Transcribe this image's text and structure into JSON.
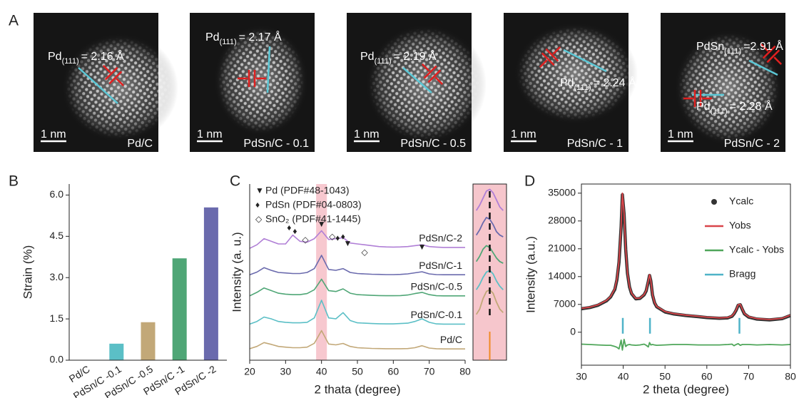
{
  "panel_a": {
    "label": "A",
    "images": [
      {
        "caption": "Pd/C",
        "scale_bar": "1 nm",
        "annotations": [
          {
            "text": "Pd",
            "sub": "(111)",
            "value": "= 2.16 Å"
          }
        ]
      },
      {
        "caption": "PdSn/C - 0.1",
        "scale_bar": "1 nm",
        "annotations": [
          {
            "text": "Pd",
            "sub": "(111)",
            "value": "= 2.17 Å"
          }
        ]
      },
      {
        "caption": "PdSn/C - 0.5",
        "scale_bar": "1 nm",
        "annotations": [
          {
            "text": "Pd",
            "sub": "(111)",
            "value": "= 2.19 Å"
          }
        ]
      },
      {
        "caption": "PdSn/C - 1",
        "scale_bar": "1 nm",
        "annotations": [
          {
            "text": "Pd",
            "sub": "(111)",
            "value": "= 2.24 Å"
          }
        ]
      },
      {
        "caption": "PdSn/C - 2",
        "scale_bar": "1 nm",
        "annotations": [
          {
            "text": "PdSn",
            "sub": "(111)",
            "value": "=2.91 Å"
          },
          {
            "text": "Pd",
            "sub": "(111)",
            "value": "= 2.28 Å"
          }
        ]
      }
    ]
  },
  "chart_data": [
    {
      "type": "bar",
      "panel_label": "B",
      "ylabel": "Strain (%)",
      "categories": [
        "Pd/C",
        "PdSn/C -0.1",
        "PdSn/C -0.5",
        "PdSn/C -1",
        "PdSn/C -2"
      ],
      "values": [
        0,
        0.6,
        1.38,
        3.7,
        5.55
      ],
      "colors": [
        "#999999",
        "#5bbfc6",
        "#c2a878",
        "#4fa676",
        "#6a6aad"
      ],
      "ylim": [
        0,
        6.4
      ],
      "yticks": [
        {
          "value": 0,
          "label": "0.0"
        },
        {
          "value": 1.5,
          "label": "1.5"
        },
        {
          "value": 3,
          "label": "3.0"
        },
        {
          "value": 4.5,
          "label": "4.5"
        },
        {
          "value": 6,
          "label": "6.0"
        }
      ]
    },
    {
      "type": "line",
      "panel_label": "C",
      "xlabel": "2 thata (degree)",
      "ylabel": "Intensity (a. u.)",
      "xlim": [
        20,
        80
      ],
      "xticks": [
        20,
        30,
        40,
        50,
        60,
        70,
        80
      ],
      "ylim": [
        0,
        10
      ],
      "highlight": [
        38.5,
        41.5
      ],
      "legend": [
        {
          "symbol": "▼",
          "text": "Pd (PDF#48-1043)"
        },
        {
          "symbol": "♦",
          "text": "PdSn (PDF#04-0803)"
        },
        {
          "symbol": "◇",
          "text": "SnO₂ (PDF#41-1445)"
        }
      ],
      "markers": [
        {
          "symbol": "♦",
          "x": 31,
          "y": 7.5
        },
        {
          "symbol": "♦",
          "x": 32.6,
          "y": 7.3
        },
        {
          "symbol": "◇",
          "x": 35.5,
          "y": 6.8
        },
        {
          "symbol": "▼",
          "x": 40,
          "y": 7.7
        },
        {
          "symbol": "◇",
          "x": 43,
          "y": 7.0
        },
        {
          "symbol": "♦",
          "x": 44.5,
          "y": 6.9
        },
        {
          "symbol": "♦",
          "x": 46,
          "y": 7.0
        },
        {
          "symbol": "▼",
          "x": 47.3,
          "y": 6.6
        },
        {
          "symbol": "◇",
          "x": 52,
          "y": 6.1
        },
        {
          "symbol": "▼",
          "x": 68,
          "y": 6.4
        }
      ],
      "x": [
        20,
        22,
        24,
        26,
        28,
        30,
        32,
        34,
        36,
        38,
        40,
        42,
        44,
        46,
        48,
        50,
        52,
        54,
        56,
        58,
        60,
        62,
        64,
        66,
        68,
        70,
        72,
        74,
        76,
        78,
        80
      ],
      "series": [
        {
          "name": "Pd/C",
          "color": "#c2a878",
          "values": [
            0.65,
            0.78,
            1.0,
            0.9,
            0.78,
            0.74,
            0.71,
            0.71,
            0.74,
            0.96,
            1.68,
            0.92,
            0.87,
            0.95,
            0.78,
            0.71,
            0.69,
            0.67,
            0.66,
            0.65,
            0.65,
            0.65,
            0.66,
            0.71,
            0.82,
            0.69,
            0.65,
            0.64,
            0.64,
            0.64,
            0.64
          ]
        },
        {
          "name": "PdSn/C-0.1",
          "color": "#5bbfc6",
          "values": [
            2.05,
            2.2,
            2.45,
            2.35,
            2.2,
            2.15,
            2.12,
            2.12,
            2.15,
            2.4,
            3.4,
            2.4,
            2.35,
            2.7,
            2.25,
            2.12,
            2.1,
            2.08,
            2.07,
            2.06,
            2.06,
            2.08,
            2.1,
            2.2,
            2.35,
            2.15,
            2.06,
            2.05,
            2.05,
            2.05,
            2.05
          ]
        },
        {
          "name": "PdSn/C-0.5",
          "color": "#4fa676",
          "values": [
            3.65,
            3.85,
            4.1,
            3.95,
            3.8,
            3.75,
            3.72,
            3.72,
            3.78,
            4.0,
            4.6,
            3.95,
            3.9,
            4.05,
            3.8,
            3.72,
            3.7,
            3.68,
            3.67,
            3.66,
            3.66,
            3.67,
            3.7,
            3.78,
            3.85,
            3.72,
            3.66,
            3.65,
            3.65,
            3.65,
            3.65
          ]
        },
        {
          "name": "PdSn/C-1",
          "color": "#6a6aad",
          "values": [
            4.85,
            5.0,
            5.25,
            5.1,
            4.98,
            4.95,
            4.92,
            4.92,
            4.98,
            5.2,
            5.95,
            5.15,
            5.1,
            5.2,
            4.98,
            4.92,
            4.9,
            4.88,
            4.87,
            4.86,
            4.86,
            4.87,
            4.9,
            4.96,
            5.02,
            4.9,
            4.86,
            4.85,
            4.85,
            4.85,
            4.85
          ]
        },
        {
          "name": "PdSn/C-2",
          "color": "#b07fd6",
          "values": [
            6.35,
            6.55,
            6.9,
            6.75,
            6.6,
            6.6,
            7.1,
            6.75,
            6.7,
            6.9,
            7.35,
            6.85,
            6.9,
            6.95,
            6.65,
            6.6,
            6.55,
            6.5,
            6.45,
            6.43,
            6.42,
            6.43,
            6.45,
            6.5,
            6.55,
            6.45,
            6.42,
            6.4,
            6.4,
            6.4,
            6.4
          ]
        }
      ]
    },
    {
      "type": "inset",
      "xlim": [
        37.5,
        42.5
      ],
      "ylim": [
        0,
        10
      ],
      "vline": 40,
      "x": [
        38,
        38.5,
        39,
        39.5,
        40,
        40.5,
        41,
        41.5,
        42
      ],
      "series": [
        {
          "color": "#c2a878",
          "values": [
            2.6,
            2.9,
            3.5,
            3.9,
            4.0,
            3.8,
            3.3,
            2.9,
            2.7
          ]
        },
        {
          "color": "#5bbfc6",
          "values": [
            4.0,
            4.3,
            4.7,
            5.0,
            5.1,
            4.9,
            4.5,
            4.2,
            4.0
          ]
        },
        {
          "color": "#4fa676",
          "values": [
            5.6,
            5.9,
            6.3,
            6.5,
            6.4,
            6.1,
            5.8,
            5.6,
            5.5
          ]
        },
        {
          "color": "#6a6aad",
          "values": [
            7.1,
            7.4,
            7.8,
            8.1,
            8.0,
            7.7,
            7.3,
            7.1,
            7.0
          ]
        },
        {
          "color": "#b07fd6",
          "values": [
            8.5,
            8.8,
            9.2,
            9.6,
            9.7,
            9.5,
            9.1,
            8.7,
            8.5
          ]
        }
      ]
    },
    {
      "type": "line",
      "panel_label": "D",
      "xlabel": "2 theta (degree)",
      "ylabel": "Intensity (a.u.)",
      "xlim": [
        30,
        80
      ],
      "xticks": [
        30,
        40,
        50,
        60,
        70,
        80
      ],
      "ylim": [
        -8300,
        37300
      ],
      "yticks": [
        0,
        7000,
        14000,
        21000,
        28000,
        35000
      ],
      "x": [
        30,
        32,
        34,
        36,
        37,
        38,
        38.5,
        39,
        39.5,
        39.8,
        40.2,
        40.6,
        41,
        41.5,
        42,
        43,
        44,
        45,
        45.5,
        46,
        46.3,
        46.6,
        47,
        47.5,
        48,
        50,
        52,
        55,
        58,
        60,
        63,
        65,
        66,
        66.5,
        67,
        67.5,
        68,
        68.5,
        69,
        70,
        72,
        75,
        78,
        80
      ],
      "series": [
        {
          "name": "Ycalc",
          "color": "#333333",
          "values": [
            5900,
            6200,
            6800,
            7900,
            8900,
            10800,
            13200,
            17600,
            26600,
            34600,
            29800,
            20800,
            14900,
            11400,
            9700,
            8400,
            8500,
            9400,
            10400,
            12800,
            14300,
            12900,
            9400,
            7400,
            6400,
            5100,
            4600,
            4200,
            3900,
            3700,
            3500,
            3600,
            4000,
            4600,
            5500,
            6800,
            6900,
            5700,
            4600,
            3800,
            3300,
            3100,
            3400,
            4200
          ]
        },
        {
          "name": "Yobs",
          "color": "#d9454a",
          "values": [
            6000,
            6300,
            6900,
            8000,
            9000,
            11000,
            13500,
            18000,
            27000,
            35000,
            30000,
            21000,
            15000,
            11500,
            9800,
            8500,
            8600,
            9500,
            10500,
            13000,
            14500,
            13000,
            9500,
            7500,
            6500,
            5200,
            4700,
            4300,
            4000,
            3800,
            3600,
            3700,
            4100,
            4700,
            5600,
            6900,
            7000,
            5800,
            4700,
            3900,
            3400,
            3200,
            3500,
            4300
          ]
        },
        {
          "name": "Ycalc - Yobs",
          "color": "#4fa65a",
          "values": [
            -3000,
            -3100,
            -3200,
            -3300,
            -3300,
            -3600,
            -3800,
            -4200,
            -2000,
            -4500,
            -1800,
            -3600,
            -3200,
            -3100,
            -3200,
            -3300,
            -3200,
            -3000,
            -3300,
            -3700,
            -2600,
            -3200,
            -3100,
            -3200,
            -3300,
            -3200,
            -3100,
            -3100,
            -3200,
            -3200,
            -3200,
            -3100,
            -3000,
            -3400,
            -3100,
            -2900,
            -3300,
            -3100,
            -3100,
            -3100,
            -3200,
            -3100,
            -3200,
            -3100
          ]
        }
      ],
      "bragg": {
        "name": "Bragg",
        "color": "#4fb3c8",
        "x": [
          39.9,
          46.4,
          67.8
        ]
      }
    }
  ]
}
